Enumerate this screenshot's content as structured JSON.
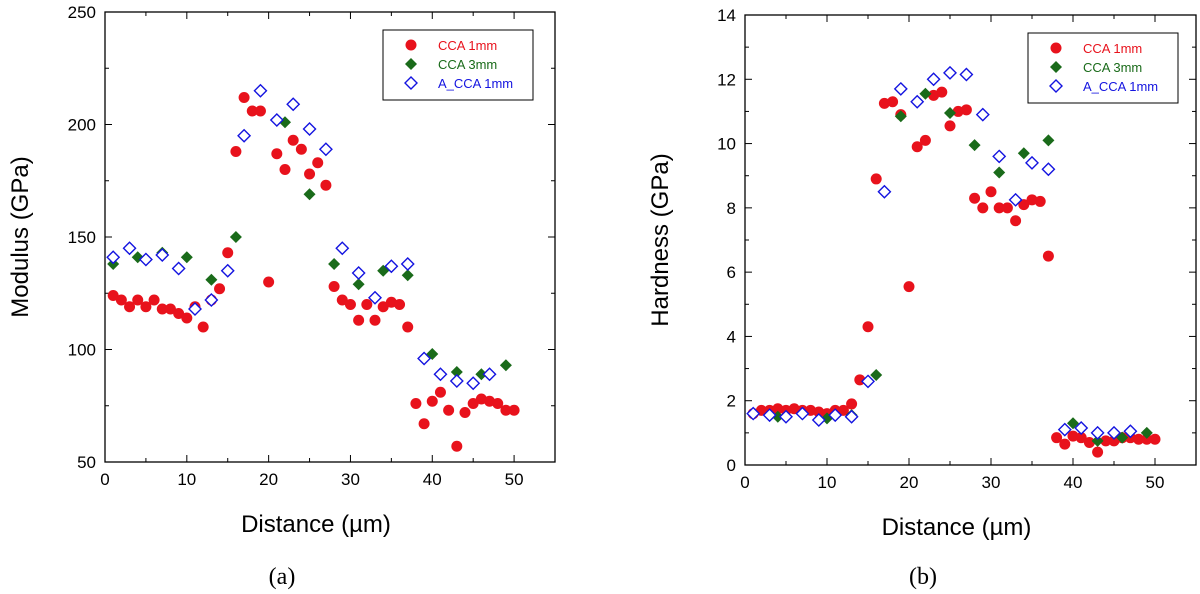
{
  "colors": {
    "cca_1mm": "#e8121c",
    "cca_3mm": "#1a6b1a",
    "a_cca_1mm": "#1414e0",
    "axis": "#000000"
  },
  "chart_data": [
    {
      "type": "scatter",
      "panel_caption": "(a)",
      "xlabel": "Distance (µm)",
      "ylabel": "Modulus (GPa)",
      "xlim": [
        0,
        55
      ],
      "ylim": [
        50,
        250
      ],
      "xticks": [
        0,
        10,
        20,
        30,
        40,
        50
      ],
      "yticks": [
        50,
        100,
        150,
        200,
        250
      ],
      "legend_position": "top-right",
      "series": [
        {
          "name": "CCA 1mm",
          "marker": "filled-circle",
          "color_key": "cca_1mm",
          "points": [
            [
              1,
              124
            ],
            [
              2,
              122
            ],
            [
              3,
              119
            ],
            [
              4,
              122
            ],
            [
              5,
              119
            ],
            [
              6,
              122
            ],
            [
              7,
              118
            ],
            [
              8,
              118
            ],
            [
              9,
              116
            ],
            [
              10,
              114
            ],
            [
              11,
              119
            ],
            [
              12,
              110
            ],
            [
              13,
              122
            ],
            [
              14,
              127
            ],
            [
              15,
              143
            ],
            [
              16,
              188
            ],
            [
              17,
              212
            ],
            [
              18,
              206
            ],
            [
              19,
              206
            ],
            [
              20,
              130
            ],
            [
              21,
              187
            ],
            [
              22,
              180
            ],
            [
              23,
              193
            ],
            [
              24,
              189
            ],
            [
              25,
              178
            ],
            [
              26,
              183
            ],
            [
              27,
              173
            ],
            [
              28,
              128
            ],
            [
              29,
              122
            ],
            [
              30,
              120
            ],
            [
              31,
              113
            ],
            [
              32,
              120
            ],
            [
              33,
              113
            ],
            [
              34,
              119
            ],
            [
              35,
              121
            ],
            [
              36,
              120
            ],
            [
              37,
              110
            ],
            [
              38,
              76
            ],
            [
              39,
              67
            ],
            [
              40,
              77
            ],
            [
              41,
              81
            ],
            [
              42,
              73
            ],
            [
              43,
              57
            ],
            [
              44,
              72
            ],
            [
              45,
              76
            ],
            [
              46,
              78
            ],
            [
              47,
              77
            ],
            [
              48,
              76
            ],
            [
              49,
              73
            ],
            [
              50,
              73
            ]
          ]
        },
        {
          "name": "CCA 3mm",
          "marker": "filled-diamond",
          "color_key": "cca_3mm",
          "points": [
            [
              1,
              138
            ],
            [
              4,
              141
            ],
            [
              7,
              143
            ],
            [
              10,
              141
            ],
            [
              13,
              131
            ],
            [
              16,
              150
            ],
            [
              22,
              201
            ],
            [
              25,
              169
            ],
            [
              28,
              138
            ],
            [
              31,
              129
            ],
            [
              34,
              135
            ],
            [
              37,
              133
            ],
            [
              40,
              98
            ],
            [
              43,
              90
            ],
            [
              46,
              89
            ],
            [
              49,
              93
            ]
          ]
        },
        {
          "name": "A_CCA 1mm",
          "marker": "open-diamond",
          "color_key": "a_cca_1mm",
          "points": [
            [
              1,
              141
            ],
            [
              3,
              145
            ],
            [
              5,
              140
            ],
            [
              7,
              142
            ],
            [
              9,
              136
            ],
            [
              11,
              118
            ],
            [
              13,
              122
            ],
            [
              15,
              135
            ],
            [
              17,
              195
            ],
            [
              19,
              215
            ],
            [
              21,
              202
            ],
            [
              23,
              209
            ],
            [
              25,
              198
            ],
            [
              27,
              189
            ],
            [
              29,
              145
            ],
            [
              31,
              134
            ],
            [
              33,
              123
            ],
            [
              35,
              137
            ],
            [
              37,
              138
            ],
            [
              39,
              96
            ],
            [
              41,
              89
            ],
            [
              43,
              86
            ],
            [
              45,
              85
            ],
            [
              47,
              89
            ]
          ]
        }
      ]
    },
    {
      "type": "scatter",
      "panel_caption": "(b)",
      "xlabel": "Distance (µm)",
      "ylabel": "Hardness (GPa)",
      "xlim": [
        0,
        55
      ],
      "ylim": [
        0,
        14
      ],
      "xticks": [
        0,
        10,
        20,
        30,
        40,
        50
      ],
      "yticks": [
        0,
        2,
        4,
        6,
        8,
        10,
        12,
        14
      ],
      "legend_position": "top-right",
      "series": [
        {
          "name": "CCA 1mm",
          "marker": "filled-circle",
          "color_key": "cca_1mm",
          "points": [
            [
              1,
              1.6
            ],
            [
              2,
              1.7
            ],
            [
              3,
              1.7
            ],
            [
              4,
              1.75
            ],
            [
              5,
              1.7
            ],
            [
              6,
              1.75
            ],
            [
              7,
              1.7
            ],
            [
              8,
              1.7
            ],
            [
              9,
              1.65
            ],
            [
              10,
              1.6
            ],
            [
              11,
              1.7
            ],
            [
              12,
              1.7
            ],
            [
              13,
              1.9
            ],
            [
              14,
              2.65
            ],
            [
              15,
              4.3
            ],
            [
              16,
              8.9
            ],
            [
              17,
              11.25
            ],
            [
              18,
              11.3
            ],
            [
              19,
              10.9
            ],
            [
              20,
              5.55
            ],
            [
              21,
              9.9
            ],
            [
              22,
              10.1
            ],
            [
              23,
              11.5
            ],
            [
              24,
              11.6
            ],
            [
              25,
              10.55
            ],
            [
              26,
              11.0
            ],
            [
              27,
              11.05
            ],
            [
              28,
              8.3
            ],
            [
              29,
              8.0
            ],
            [
              30,
              8.5
            ],
            [
              31,
              8.0
            ],
            [
              32,
              8.0
            ],
            [
              33,
              7.6
            ],
            [
              34,
              8.1
            ],
            [
              35,
              8.25
            ],
            [
              36,
              8.2
            ],
            [
              37,
              6.5
            ],
            [
              38,
              0.85
            ],
            [
              39,
              0.65
            ],
            [
              40,
              0.9
            ],
            [
              41,
              0.85
            ],
            [
              42,
              0.7
            ],
            [
              43,
              0.4
            ],
            [
              44,
              0.75
            ],
            [
              45,
              0.75
            ],
            [
              46,
              0.85
            ],
            [
              47,
              0.85
            ],
            [
              48,
              0.8
            ],
            [
              49,
              0.8
            ],
            [
              50,
              0.8
            ]
          ]
        },
        {
          "name": "CCA 3mm",
          "marker": "filled-diamond",
          "color_key": "cca_3mm",
          "points": [
            [
              1,
              1.6
            ],
            [
              4,
              1.5
            ],
            [
              7,
              1.6
            ],
            [
              10,
              1.45
            ],
            [
              13,
              1.55
            ],
            [
              16,
              2.8
            ],
            [
              19,
              10.85
            ],
            [
              22,
              11.55
            ],
            [
              25,
              10.95
            ],
            [
              28,
              9.95
            ],
            [
              31,
              9.1
            ],
            [
              34,
              9.7
            ],
            [
              37,
              10.1
            ],
            [
              40,
              1.3
            ],
            [
              43,
              0.75
            ],
            [
              46,
              0.85
            ],
            [
              49,
              1.0
            ]
          ]
        },
        {
          "name": "A_CCA 1mm",
          "marker": "open-diamond",
          "color_key": "a_cca_1mm",
          "points": [
            [
              1,
              1.6
            ],
            [
              3,
              1.55
            ],
            [
              5,
              1.5
            ],
            [
              7,
              1.6
            ],
            [
              9,
              1.4
            ],
            [
              11,
              1.55
            ],
            [
              13,
              1.5
            ],
            [
              15,
              2.6
            ],
            [
              17,
              8.5
            ],
            [
              19,
              11.7
            ],
            [
              21,
              11.3
            ],
            [
              23,
              12.0
            ],
            [
              25,
              12.2
            ],
            [
              27,
              12.15
            ],
            [
              29,
              10.9
            ],
            [
              31,
              9.6
            ],
            [
              33,
              8.25
            ],
            [
              35,
              9.4
            ],
            [
              37,
              9.2
            ],
            [
              39,
              1.1
            ],
            [
              41,
              1.15
            ],
            [
              43,
              1.0
            ],
            [
              45,
              1.0
            ],
            [
              47,
              1.05
            ]
          ]
        }
      ]
    }
  ]
}
